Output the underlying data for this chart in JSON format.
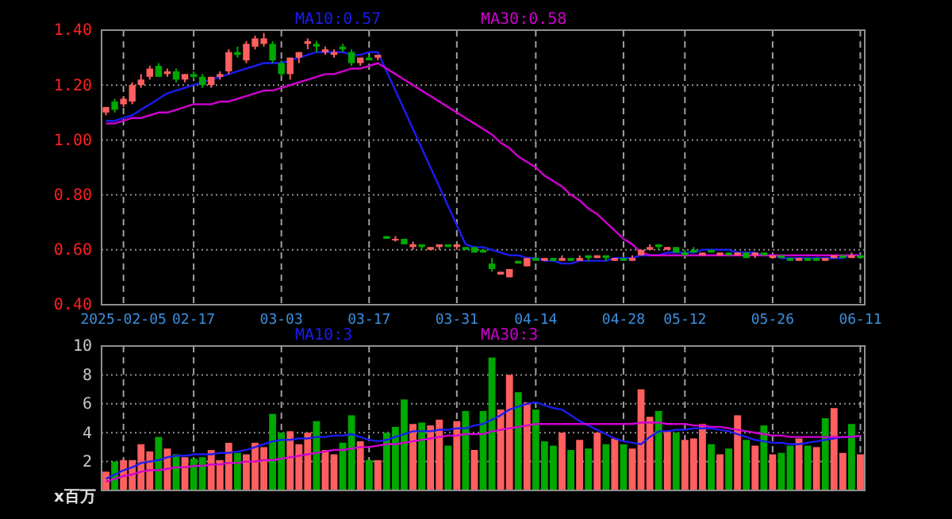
{
  "chart_data": [
    {
      "type": "candlestick",
      "categories": [
        null,
        null,
        "2025-02-05",
        null,
        null,
        null,
        null,
        null,
        null,
        null,
        "02-17",
        null,
        null,
        null,
        null,
        null,
        null,
        null,
        null,
        null,
        "03-03",
        null,
        null,
        null,
        null,
        null,
        null,
        null,
        null,
        null,
        "03-17",
        null,
        null,
        null,
        null,
        null,
        null,
        null,
        null,
        null,
        "03-31",
        null,
        null,
        null,
        null,
        null,
        null,
        null,
        null,
        "04-14",
        null,
        null,
        null,
        null,
        null,
        null,
        null,
        null,
        null,
        "04-28",
        null,
        null,
        null,
        null,
        null,
        null,
        "05-12",
        null,
        null,
        null,
        null,
        null,
        null,
        null,
        null,
        null,
        "05-26",
        null,
        null,
        null,
        null,
        null,
        null,
        null,
        null,
        null,
        "06-11"
      ],
      "ohlc": [
        [
          1.1,
          1.12,
          1.09,
          1.12
        ],
        [
          1.14,
          1.15,
          1.1,
          1.11
        ],
        [
          1.13,
          1.16,
          1.12,
          1.15
        ],
        [
          1.14,
          1.21,
          1.13,
          1.2
        ],
        [
          1.2,
          1.24,
          1.19,
          1.22
        ],
        [
          1.23,
          1.27,
          1.22,
          1.26
        ],
        [
          1.27,
          1.28,
          1.23,
          1.23
        ],
        [
          1.24,
          1.26,
          1.23,
          1.25
        ],
        [
          1.25,
          1.26,
          1.21,
          1.22
        ],
        [
          1.22,
          1.24,
          1.21,
          1.24
        ],
        [
          1.24,
          1.25,
          1.22,
          1.23
        ],
        [
          1.23,
          1.24,
          1.19,
          1.2
        ],
        [
          1.2,
          1.23,
          1.19,
          1.23
        ],
        [
          1.23,
          1.25,
          1.22,
          1.24
        ],
        [
          1.25,
          1.33,
          1.24,
          1.32
        ],
        [
          1.32,
          1.34,
          1.3,
          1.31
        ],
        [
          1.29,
          1.36,
          1.28,
          1.35
        ],
        [
          1.34,
          1.38,
          1.33,
          1.37
        ],
        [
          1.35,
          1.39,
          1.34,
          1.37
        ],
        [
          1.35,
          1.36,
          1.28,
          1.29
        ],
        [
          1.28,
          1.29,
          1.23,
          1.24
        ],
        [
          1.24,
          1.3,
          1.22,
          1.3
        ],
        [
          1.3,
          1.32,
          1.28,
          1.32
        ],
        [
          1.35,
          1.37,
          1.33,
          1.36
        ],
        [
          1.35,
          1.36,
          1.32,
          1.34
        ],
        [
          1.32,
          1.34,
          1.31,
          1.33
        ],
        [
          1.31,
          1.33,
          1.3,
          1.32
        ],
        [
          1.34,
          1.35,
          1.32,
          1.33
        ],
        [
          1.32,
          1.33,
          1.27,
          1.28
        ],
        [
          1.28,
          1.3,
          1.27,
          1.3
        ],
        [
          1.3,
          1.31,
          1.29,
          1.29
        ],
        [
          1.3,
          1.31,
          1.29,
          1.31
        ],
        [
          0.65,
          0.65,
          0.64,
          0.64
        ],
        [
          0.64,
          0.65,
          0.63,
          0.64
        ],
        [
          0.64,
          0.64,
          0.62,
          0.62
        ],
        [
          0.61,
          0.63,
          0.6,
          0.62
        ],
        [
          0.62,
          0.62,
          0.6,
          0.61
        ],
        [
          0.6,
          0.61,
          0.6,
          0.61
        ],
        [
          0.61,
          0.62,
          0.6,
          0.62
        ],
        [
          0.62,
          0.62,
          0.61,
          0.61
        ],
        [
          0.61,
          0.62,
          0.6,
          0.62
        ],
        [
          0.61,
          0.61,
          0.6,
          0.6
        ],
        [
          0.61,
          0.61,
          0.59,
          0.59
        ],
        [
          0.6,
          0.6,
          0.59,
          0.59
        ],
        [
          0.55,
          0.57,
          0.52,
          0.53
        ],
        [
          0.51,
          0.52,
          0.51,
          0.52
        ],
        [
          0.5,
          0.53,
          0.5,
          0.53
        ],
        [
          0.56,
          0.56,
          0.55,
          0.55
        ],
        [
          0.54,
          0.57,
          0.54,
          0.57
        ],
        [
          0.57,
          0.58,
          0.56,
          0.56
        ],
        [
          0.56,
          0.57,
          0.56,
          0.57
        ],
        [
          0.57,
          0.57,
          0.56,
          0.56
        ],
        [
          0.56,
          0.58,
          0.56,
          0.57
        ],
        [
          0.57,
          0.57,
          0.56,
          0.56
        ],
        [
          0.56,
          0.58,
          0.56,
          0.57
        ],
        [
          0.58,
          0.58,
          0.56,
          0.57
        ],
        [
          0.57,
          0.58,
          0.57,
          0.58
        ],
        [
          0.58,
          0.58,
          0.56,
          0.57
        ],
        [
          0.56,
          0.57,
          0.56,
          0.57
        ],
        [
          0.57,
          0.57,
          0.56,
          0.56
        ],
        [
          0.56,
          0.58,
          0.56,
          0.57
        ],
        [
          0.58,
          0.6,
          0.58,
          0.6
        ],
        [
          0.6,
          0.62,
          0.6,
          0.61
        ],
        [
          0.62,
          0.62,
          0.6,
          0.61
        ],
        [
          0.6,
          0.61,
          0.6,
          0.61
        ],
        [
          0.61,
          0.61,
          0.59,
          0.59
        ],
        [
          0.59,
          0.6,
          0.58,
          0.58
        ],
        [
          0.6,
          0.61,
          0.59,
          0.59
        ],
        [
          0.58,
          0.59,
          0.58,
          0.59
        ],
        [
          0.6,
          0.6,
          0.59,
          0.59
        ],
        [
          0.58,
          0.59,
          0.58,
          0.59
        ],
        [
          0.59,
          0.59,
          0.58,
          0.58
        ],
        [
          0.58,
          0.59,
          0.58,
          0.59
        ],
        [
          0.59,
          0.59,
          0.57,
          0.57
        ],
        [
          0.58,
          0.59,
          0.57,
          0.59
        ],
        [
          0.59,
          0.59,
          0.58,
          0.58
        ],
        [
          0.57,
          0.58,
          0.57,
          0.58
        ],
        [
          0.58,
          0.58,
          0.57,
          0.57
        ],
        [
          0.57,
          0.57,
          0.56,
          0.56
        ],
        [
          0.56,
          0.57,
          0.56,
          0.57
        ],
        [
          0.57,
          0.57,
          0.56,
          0.56
        ],
        [
          0.57,
          0.57,
          0.56,
          0.56
        ],
        [
          0.56,
          0.57,
          0.56,
          0.57
        ],
        [
          0.57,
          0.58,
          0.57,
          0.58
        ],
        [
          0.58,
          0.58,
          0.57,
          0.57
        ],
        [
          0.57,
          0.59,
          0.57,
          0.58
        ],
        [
          0.58,
          0.58,
          0.57,
          0.57
        ]
      ],
      "series": [
        {
          "type": "line",
          "name": "MA10:0.57",
          "color": "#1c1cf0",
          "values": [
            1.07,
            1.07,
            1.08,
            1.09,
            1.11,
            1.13,
            1.15,
            1.17,
            1.18,
            1.19,
            1.2,
            1.21,
            1.22,
            1.23,
            1.24,
            1.25,
            1.26,
            1.27,
            1.28,
            1.28,
            1.28,
            1.29,
            1.3,
            1.31,
            1.32,
            1.32,
            1.32,
            1.32,
            1.31,
            1.31,
            1.32,
            1.32,
            1.25,
            1.18,
            1.11,
            1.04,
            0.97,
            0.9,
            0.83,
            0.76,
            0.69,
            0.62,
            0.61,
            0.61,
            0.6,
            0.59,
            0.58,
            0.58,
            0.57,
            0.57,
            0.56,
            0.56,
            0.55,
            0.55,
            0.56,
            0.56,
            0.56,
            0.56,
            0.57,
            0.57,
            0.57,
            0.58,
            0.58,
            0.58,
            0.59,
            0.59,
            0.59,
            0.59,
            0.6,
            0.6,
            0.6,
            0.6,
            0.59,
            0.59,
            0.59,
            0.58,
            0.58,
            0.57,
            0.57,
            0.57,
            0.57,
            0.57,
            0.57,
            0.57,
            0.57,
            0.58,
            0.58
          ]
        },
        {
          "type": "line",
          "name": "MA30:0.58",
          "color": "#d000d0",
          "values": [
            1.06,
            1.06,
            1.07,
            1.08,
            1.08,
            1.09,
            1.1,
            1.1,
            1.11,
            1.12,
            1.13,
            1.13,
            1.13,
            1.14,
            1.14,
            1.15,
            1.16,
            1.17,
            1.18,
            1.18,
            1.19,
            1.2,
            1.21,
            1.22,
            1.23,
            1.24,
            1.24,
            1.25,
            1.26,
            1.26,
            1.27,
            1.28,
            1.26,
            1.24,
            1.22,
            1.2,
            1.18,
            1.16,
            1.14,
            1.12,
            1.1,
            1.08,
            1.06,
            1.04,
            1.02,
            0.99,
            0.97,
            0.94,
            0.92,
            0.9,
            0.87,
            0.85,
            0.83,
            0.8,
            0.78,
            0.75,
            0.73,
            0.7,
            0.67,
            0.64,
            0.62,
            0.59,
            0.58,
            0.58,
            0.58,
            0.58,
            0.58,
            0.58,
            0.58,
            0.58,
            0.58,
            0.58,
            0.58,
            0.58,
            0.58,
            0.58,
            0.58,
            0.58,
            0.58,
            0.58,
            0.58,
            0.58,
            0.58,
            0.58,
            0.58,
            0.58,
            0.58
          ]
        }
      ],
      "ylim": [
        0.4,
        1.4
      ],
      "yticks": [
        {
          "value": 0.4,
          "label": "0.40"
        },
        {
          "value": 0.6,
          "label": "0.60"
        },
        {
          "value": 0.8,
          "label": "0.80"
        },
        {
          "value": 1.0,
          "label": "1.00"
        },
        {
          "value": 1.2,
          "label": "1.20"
        },
        {
          "value": 1.4,
          "label": "1.40"
        }
      ],
      "grid": true,
      "legend": "top"
    },
    {
      "type": "bar",
      "ylabel": "x百万",
      "categories": [
        null,
        null,
        null,
        null,
        null,
        null,
        null,
        null,
        null,
        null,
        null,
        null,
        null,
        null,
        null,
        null,
        null,
        null,
        null,
        null,
        null,
        null,
        null,
        null,
        null,
        null,
        null,
        null,
        null,
        null,
        null,
        null,
        null,
        null,
        null,
        null,
        null,
        null,
        null,
        null,
        null,
        null,
        null,
        null,
        null,
        null,
        null,
        null,
        null,
        null,
        null,
        null,
        null,
        null,
        null,
        null,
        null,
        null,
        null,
        null,
        null,
        null,
        null,
        null,
        null,
        null,
        null,
        null,
        null,
        null,
        null,
        null,
        null,
        null,
        null,
        null,
        null,
        null,
        null,
        null,
        null,
        null,
        null,
        null,
        null,
        null,
        null
      ],
      "series": [
        {
          "type": "bar",
          "values": [
            1.3,
            2.0,
            2.1,
            2.1,
            3.2,
            2.7,
            3.7,
            2.9,
            2.5,
            2.3,
            2.2,
            2.3,
            2.8,
            2.1,
            3.3,
            2.6,
            2.5,
            3.3,
            3.0,
            5.3,
            4.0,
            4.1,
            3.2,
            4.0,
            4.8,
            2.8,
            2.5,
            3.3,
            5.2,
            3.4,
            2.1,
            2.1,
            4.0,
            4.4,
            6.3,
            4.6,
            4.7,
            4.5,
            4.9,
            3.1,
            4.8,
            5.5,
            2.8,
            5.5,
            9.2,
            5.6,
            8.0,
            6.8,
            6.1,
            5.6,
            3.4,
            3.1,
            4.0,
            2.8,
            3.5,
            2.9,
            4.0,
            3.2,
            3.6,
            3.2,
            2.9,
            7.0,
            5.1,
            5.5,
            4.1,
            4.0,
            3.5,
            3.6,
            4.6,
            3.2,
            2.5,
            2.9,
            5.2,
            3.5,
            3.1,
            4.5,
            2.5,
            2.6,
            3.1,
            3.6,
            3.1,
            3.0,
            5.0,
            5.7,
            2.6,
            4.6,
            2.5
          ],
          "colors": [
            "#ff5f5f",
            "#00a800",
            "#ff5f5f",
            "#ff5f5f",
            "#ff5f5f",
            "#ff5f5f",
            "#00a800",
            "#ff5f5f",
            "#00a800",
            "#ff5f5f",
            "#00a800",
            "#00a800",
            "#ff5f5f",
            "#ff5f5f",
            "#ff5f5f",
            "#00a800",
            "#ff5f5f",
            "#ff5f5f",
            "#ff5f5f",
            "#00a800",
            "#00a800",
            "#ff5f5f",
            "#ff5f5f",
            "#ff5f5f",
            "#00a800",
            "#ff5f5f",
            "#ff5f5f",
            "#00a800",
            "#00a800",
            "#ff5f5f",
            "#00a800",
            "#ff5f5f",
            "#00a800",
            "#00a800",
            "#00a800",
            "#ff5f5f",
            "#00a800",
            "#ff5f5f",
            "#ff5f5f",
            "#00a800",
            "#ff5f5f",
            "#00a800",
            "#ff5f5f",
            "#00a800",
            "#00a800",
            "#ff5f5f",
            "#ff5f5f",
            "#00a800",
            "#ff5f5f",
            "#00a800",
            "#00a800",
            "#00a800",
            "#ff5f5f",
            "#00a800",
            "#ff5f5f",
            "#00a800",
            "#ff5f5f",
            "#00a800",
            "#ff5f5f",
            "#00a800",
            "#ff5f5f",
            "#ff5f5f",
            "#ff5f5f",
            "#00a800",
            "#ff5f5f",
            "#00a800",
            "#ff5f5f",
            "#ff5f5f",
            "#ff5f5f",
            "#00a800",
            "#ff5f5f",
            "#00a800",
            "#ff5f5f",
            "#00a800",
            "#ff5f5f",
            "#00a800",
            "#ff5f5f",
            "#00a800",
            "#00a800",
            "#ff5f5f",
            "#00a800",
            "#ff5f5f",
            "#00a800",
            "#ff5f5f",
            "#ff5f5f",
            "#00a800",
            "#ff5f5f"
          ]
        },
        {
          "type": "line",
          "name": "MA10:3",
          "color": "#1c1cf0",
          "values": [
            0.8,
            1.1,
            1.4,
            1.6,
            1.9,
            2.0,
            2.1,
            2.3,
            2.4,
            2.4,
            2.5,
            2.5,
            2.5,
            2.6,
            2.6,
            2.7,
            2.8,
            3.0,
            3.2,
            3.4,
            3.5,
            3.5,
            3.6,
            3.6,
            3.7,
            3.7,
            3.8,
            3.8,
            3.9,
            3.7,
            3.5,
            3.4,
            3.5,
            3.7,
            3.9,
            4.1,
            4.1,
            4.1,
            4.2,
            4.2,
            4.3,
            4.3,
            4.5,
            4.6,
            4.9,
            5.2,
            5.6,
            5.8,
            6.0,
            6.1,
            5.9,
            5.7,
            5.6,
            5.2,
            4.8,
            4.5,
            4.2,
            3.9,
            3.6,
            3.4,
            3.3,
            3.2,
            3.7,
            4.1,
            4.1,
            4.2,
            4.2,
            4.3,
            4.3,
            4.3,
            4.2,
            4.1,
            3.9,
            3.7,
            3.5,
            3.4,
            3.3,
            3.3,
            3.2,
            3.2,
            3.3,
            3.4,
            3.5,
            3.6,
            3.7,
            3.7,
            3.8
          ]
        },
        {
          "type": "line",
          "name": "MA30:3",
          "color": "#d000d0",
          "values": [
            0.6,
            0.8,
            1.0,
            1.1,
            1.3,
            1.4,
            1.4,
            1.5,
            1.6,
            1.6,
            1.7,
            1.7,
            1.8,
            1.8,
            1.9,
            1.9,
            2.0,
            2.0,
            2.1,
            2.1,
            2.2,
            2.3,
            2.4,
            2.5,
            2.6,
            2.7,
            2.8,
            2.8,
            2.9,
            3.0,
            3.0,
            3.1,
            3.2,
            3.2,
            3.3,
            3.4,
            3.5,
            3.6,
            3.7,
            3.8,
            3.8,
            3.9,
            3.9,
            3.9,
            4.1,
            4.2,
            4.3,
            4.4,
            4.5,
            4.6,
            4.6,
            4.6,
            4.6,
            4.6,
            4.6,
            4.6,
            4.6,
            4.6,
            4.6,
            4.6,
            4.6,
            4.7,
            4.7,
            4.7,
            4.6,
            4.6,
            4.6,
            4.5,
            4.5,
            4.4,
            4.4,
            4.3,
            4.2,
            4.1,
            4.0,
            3.9,
            3.8,
            3.8,
            3.7,
            3.7,
            3.7,
            3.7,
            3.7,
            3.7,
            3.7,
            3.7,
            3.8
          ]
        }
      ],
      "ylim": [
        0,
        10
      ],
      "yticks": [
        2,
        4,
        6,
        8,
        10
      ],
      "tick_labels": "y",
      "grid": true,
      "legend": "top"
    }
  ]
}
